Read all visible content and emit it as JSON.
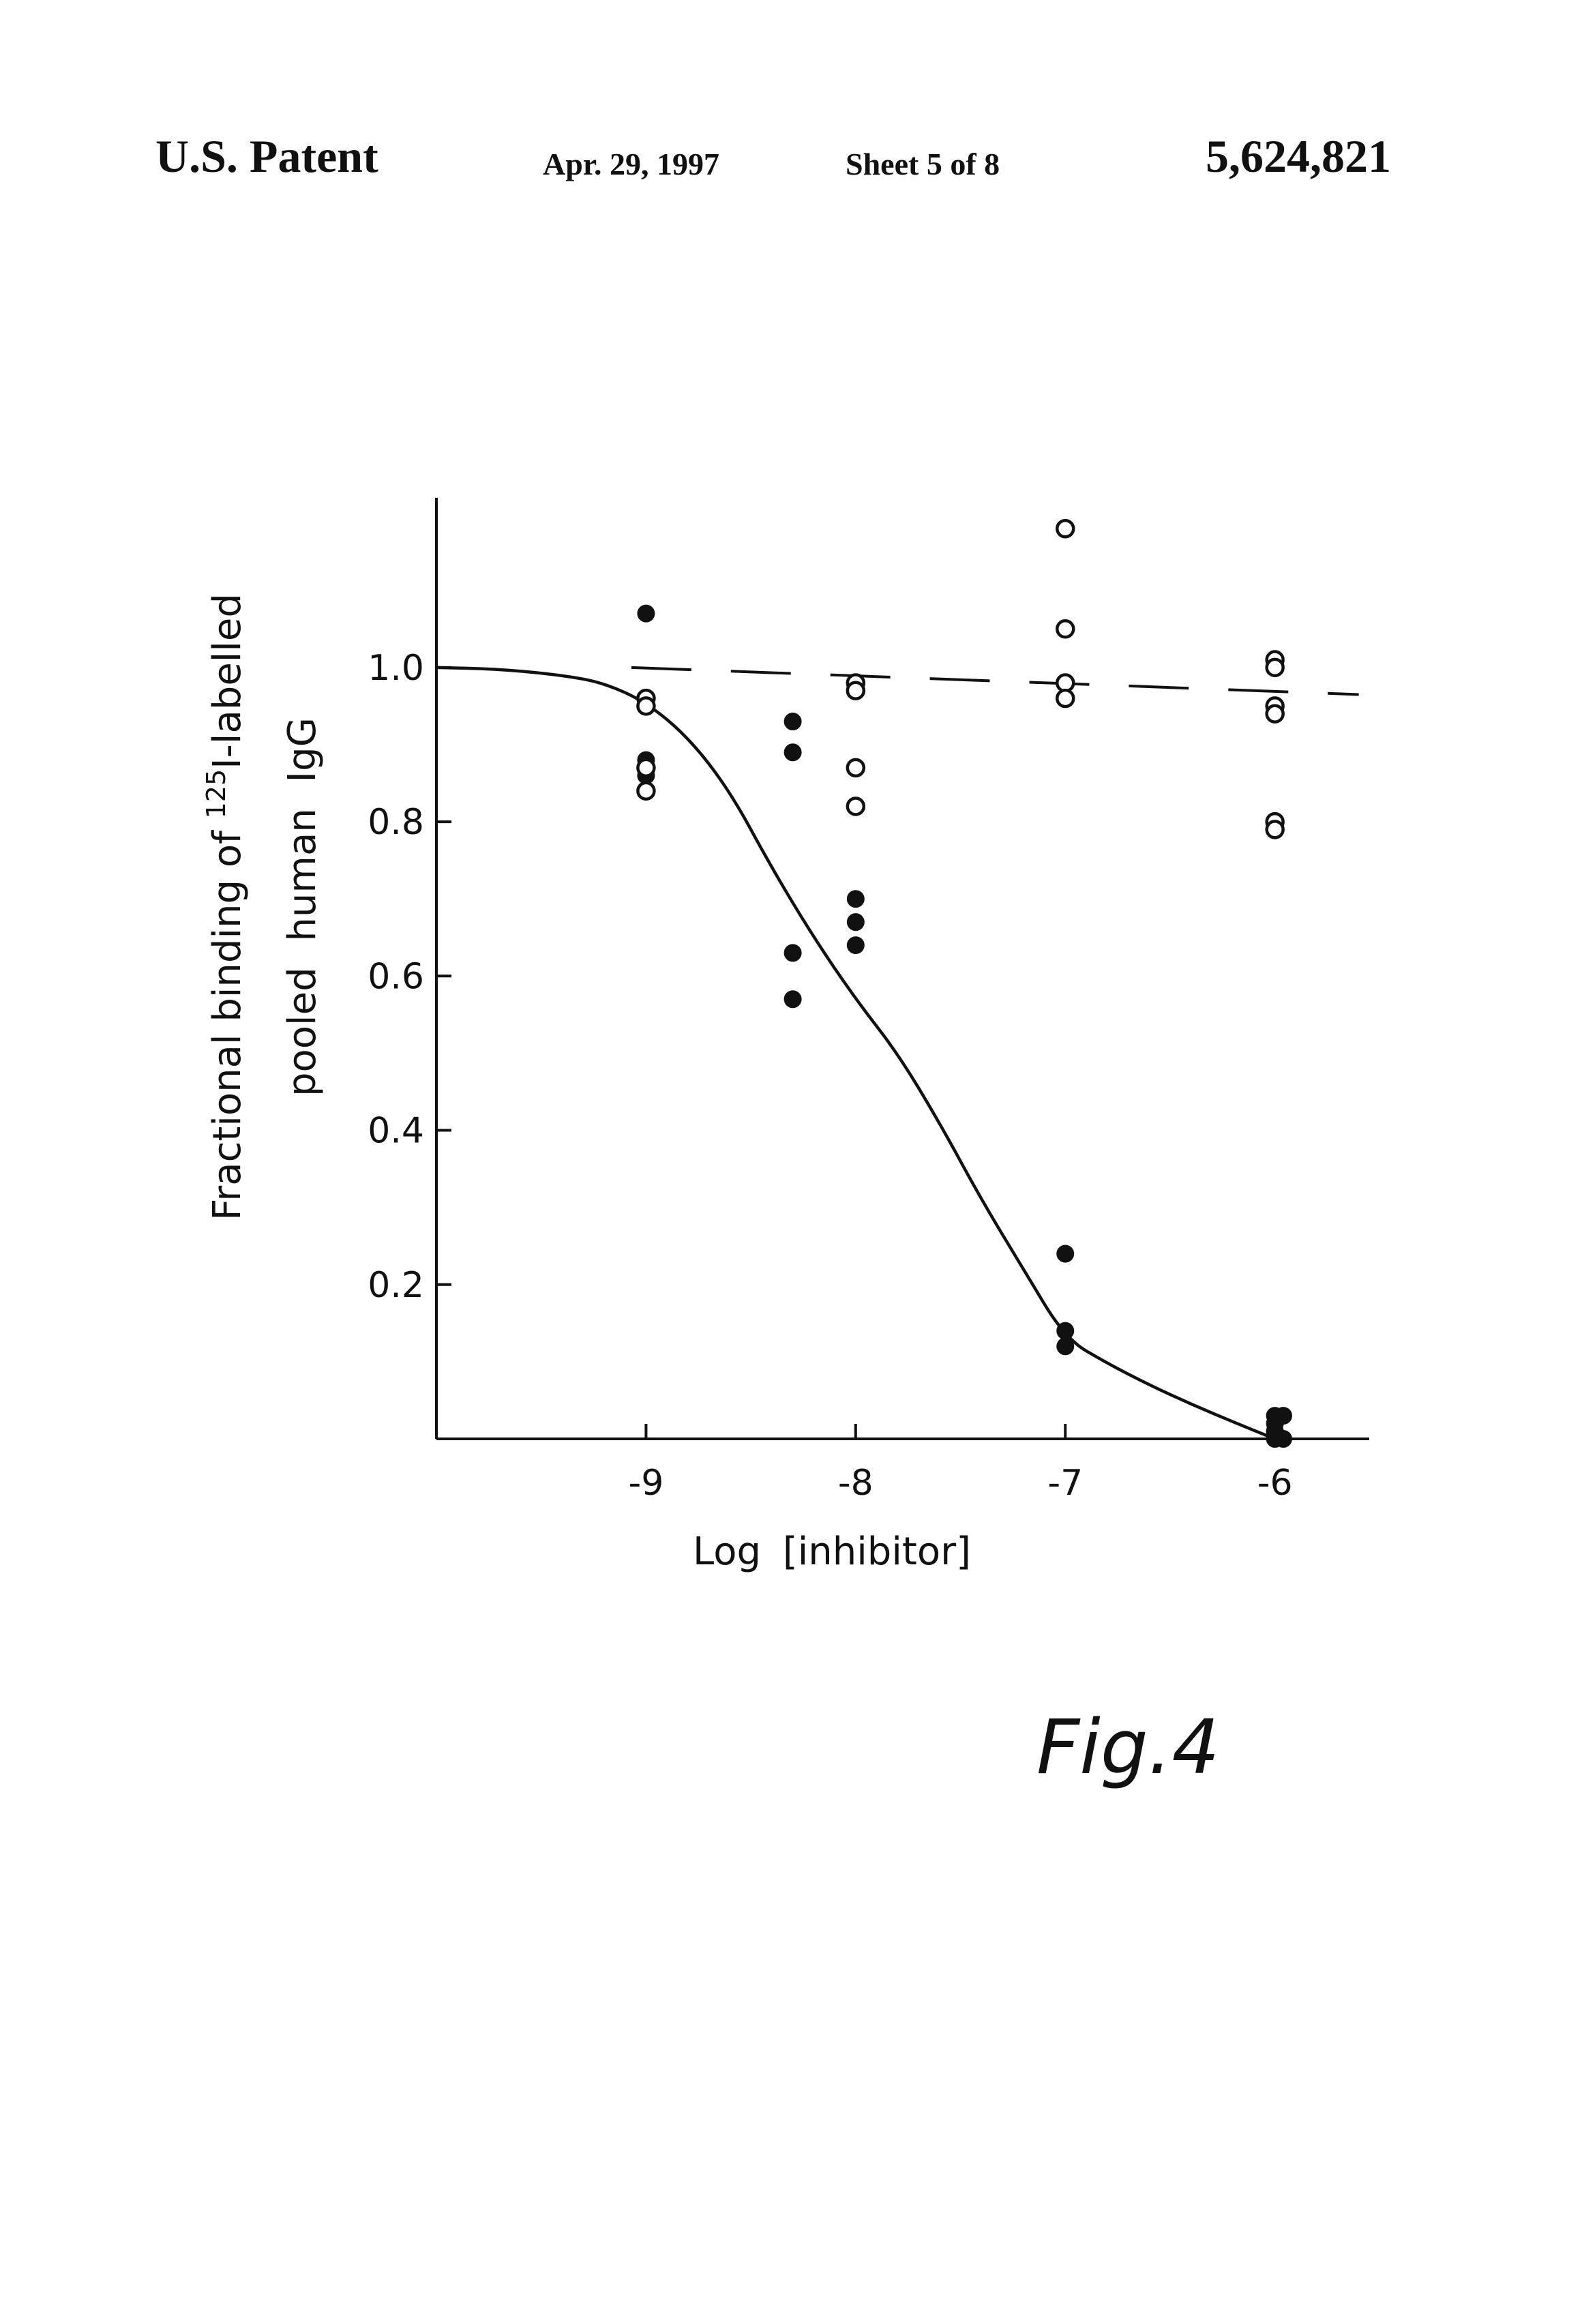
{
  "header": {
    "patent_label": "U.S. Patent",
    "date": "Apr. 29, 1997",
    "sheet": "Sheet 5 of 8",
    "patent_number": "5,624,821"
  },
  "figure_label": "Fig.4",
  "chart_data": {
    "type": "scatter",
    "title": "",
    "xlabel": "Log [inhibitor]",
    "ylabel_line1_pre": "Fractional binding of ",
    "ylabel_sup": "125",
    "ylabel_line1_post": "I-labelled",
    "ylabel_line2": "pooled human IgG",
    "xlim": [
      -10,
      -5.55
    ],
    "ylim": [
      0,
      1.22
    ],
    "x_ticks": [
      {
        "value": -9,
        "label": "-9"
      },
      {
        "value": -8,
        "label": "-8"
      },
      {
        "value": -7,
        "label": "-7"
      },
      {
        "value": -6,
        "label": "-6"
      }
    ],
    "y_ticks": [
      {
        "value": 1.0,
        "label": "1.0"
      },
      {
        "value": 0.8,
        "label": "0.8"
      },
      {
        "value": 0.6,
        "label": "0.6"
      },
      {
        "value": 0.4,
        "label": "0.4"
      },
      {
        "value": 0.2,
        "label": "0.2"
      }
    ],
    "grid": false,
    "series": [
      {
        "marker": "filled",
        "points": [
          [
            -9,
            1.07
          ],
          [
            -9,
            0.88
          ],
          [
            -9,
            0.86
          ],
          [
            -8.3,
            0.93
          ],
          [
            -8.3,
            0.89
          ],
          [
            -8.3,
            0.63
          ],
          [
            -8.3,
            0.57
          ],
          [
            -8,
            0.7
          ],
          [
            -8,
            0.67
          ],
          [
            -8,
            0.64
          ],
          [
            -7,
            0.24
          ],
          [
            -7,
            0.14
          ],
          [
            -7,
            0.12
          ],
          [
            -6,
            0.03
          ],
          [
            -6,
            0.02
          ],
          [
            -6,
            0.01
          ],
          [
            -6,
            0.0
          ],
          [
            -5.96,
            0.03
          ],
          [
            -5.96,
            0.0
          ]
        ],
        "fit": "sigmoid"
      },
      {
        "marker": "open",
        "points": [
          [
            -9,
            0.96
          ],
          [
            -9,
            0.95
          ],
          [
            -9,
            0.87
          ],
          [
            -9,
            0.84
          ],
          [
            -8,
            0.98
          ],
          [
            -8,
            0.97
          ],
          [
            -8,
            0.87
          ],
          [
            -8,
            0.82
          ],
          [
            -7,
            1.18
          ],
          [
            -7,
            1.05
          ],
          [
            -7,
            0.98
          ],
          [
            -7,
            0.96
          ],
          [
            -6,
            1.01
          ],
          [
            -6,
            1.0
          ],
          [
            -6,
            0.95
          ],
          [
            -6,
            0.94
          ],
          [
            -6,
            0.8
          ],
          [
            -6,
            0.79
          ]
        ],
        "fit": "flat"
      }
    ],
    "fit_curve": {
      "style": "solid",
      "points": [
        [
          -10,
          1.0
        ],
        [
          -9.7,
          0.998
        ],
        [
          -9.4,
          0.99
        ],
        [
          -9.2,
          0.98
        ],
        [
          -9,
          0.955
        ],
        [
          -8.8,
          0.91
        ],
        [
          -8.6,
          0.84
        ],
        [
          -8.4,
          0.74
        ],
        [
          -8.2,
          0.65
        ],
        [
          -8,
          0.57
        ],
        [
          -7.8,
          0.5
        ],
        [
          -7.6,
          0.41
        ],
        [
          -7.4,
          0.31
        ],
        [
          -7.2,
          0.22
        ],
        [
          -7,
          0.13
        ],
        [
          -6.8,
          0.098
        ],
        [
          -6.6,
          0.07
        ],
        [
          -6.4,
          0.045
        ],
        [
          -6.2,
          0.022
        ],
        [
          -6,
          0.0
        ]
      ]
    },
    "control_line": {
      "style": "dashed",
      "x": [
        -9.07,
        -5.6
      ],
      "y": [
        1.0,
        0.965
      ]
    }
  }
}
